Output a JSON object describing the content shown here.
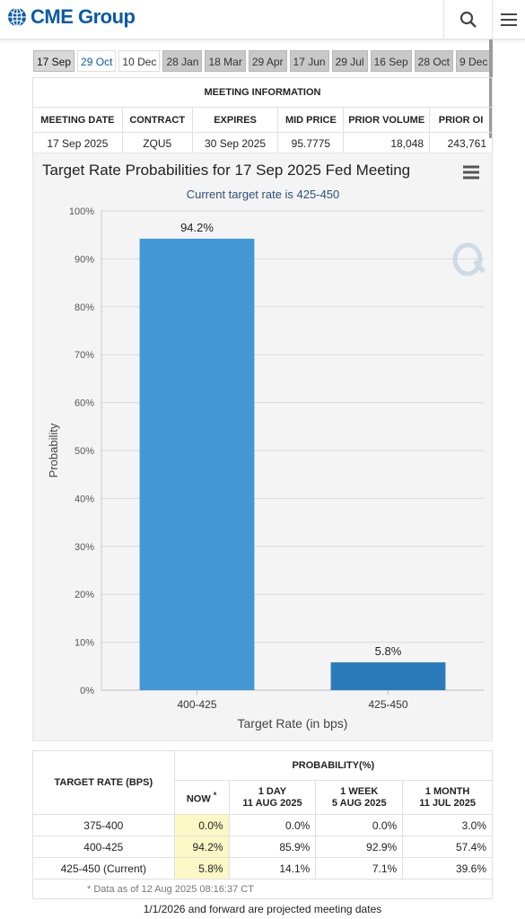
{
  "header": {
    "logo_text": "CME Group",
    "search_icon": "search-icon",
    "menu_icon": "hamburger-menu-icon"
  },
  "tabs": [
    {
      "label": "17 Sep",
      "state": "active"
    },
    {
      "label": "29 Oct",
      "state": "light-blue"
    },
    {
      "label": "10 Dec",
      "state": "light"
    },
    {
      "label": "28 Jan",
      "state": "gray"
    },
    {
      "label": "18 Mar",
      "state": "gray"
    },
    {
      "label": "29 Apr",
      "state": "gray"
    },
    {
      "label": "17 Jun",
      "state": "gray"
    },
    {
      "label": "29 Jul",
      "state": "gray"
    },
    {
      "label": "16 Sep",
      "state": "gray"
    },
    {
      "label": "28 Oct",
      "state": "gray"
    },
    {
      "label": "9 Dec",
      "state": "gray"
    }
  ],
  "meeting_info": {
    "title": "MEETING INFORMATION",
    "headers": [
      "MEETING DATE",
      "CONTRACT",
      "EXPIRES",
      "MID PRICE",
      "PRIOR VOLUME",
      "PRIOR OI"
    ],
    "row": [
      "17 Sep 2025",
      "ZQU5",
      "30 Sep 2025",
      "95.7775",
      "18,048",
      "243,761"
    ]
  },
  "chart_data": {
    "type": "bar",
    "title": "Target Rate Probabilities for 17 Sep 2025 Fed Meeting",
    "subtitle": "Current target rate is 425-450",
    "xlabel": "Target Rate (in bps)",
    "ylabel": "Probability",
    "categories": [
      "400-425",
      "425-450"
    ],
    "values": [
      94.2,
      5.8
    ],
    "data_labels": [
      "94.2%",
      "5.8%"
    ],
    "colors": [
      "#4397d4",
      "#2b7bba"
    ],
    "ylim": [
      0,
      100
    ],
    "yticks": [
      "0%",
      "10%",
      "20%",
      "30%",
      "40%",
      "50%",
      "60%",
      "70%",
      "80%",
      "90%",
      "100%"
    ],
    "grid": true,
    "menu_icon": "chart-menu-icon"
  },
  "probabilities": {
    "col_target": "TARGET RATE (BPS)",
    "col_prob": "PROBABILITY(%)",
    "sub_headers": [
      {
        "line1": "NOW",
        "line2": "",
        "sup": "*"
      },
      {
        "line1": "1 DAY",
        "line2": "11 AUG 2025",
        "sup": ""
      },
      {
        "line1": "1 WEEK",
        "line2": "5 AUG 2025",
        "sup": ""
      },
      {
        "line1": "1 MONTH",
        "line2": "11 JUL 2025",
        "sup": ""
      }
    ],
    "rows": [
      {
        "rate": "375-400",
        "now": "0.0%",
        "day": "0.0%",
        "week": "0.0%",
        "month": "3.0%"
      },
      {
        "rate": "400-425",
        "now": "94.2%",
        "day": "85.9%",
        "week": "92.9%",
        "month": "57.4%"
      },
      {
        "rate": "425-450 (Current)",
        "now": "5.8%",
        "day": "14.1%",
        "week": "7.1%",
        "month": "39.6%"
      }
    ],
    "as_of": "* Data as of 12 Aug 2025 08:16:37 CT"
  },
  "footnote": "1/1/2026 and forward are projected meeting dates"
}
